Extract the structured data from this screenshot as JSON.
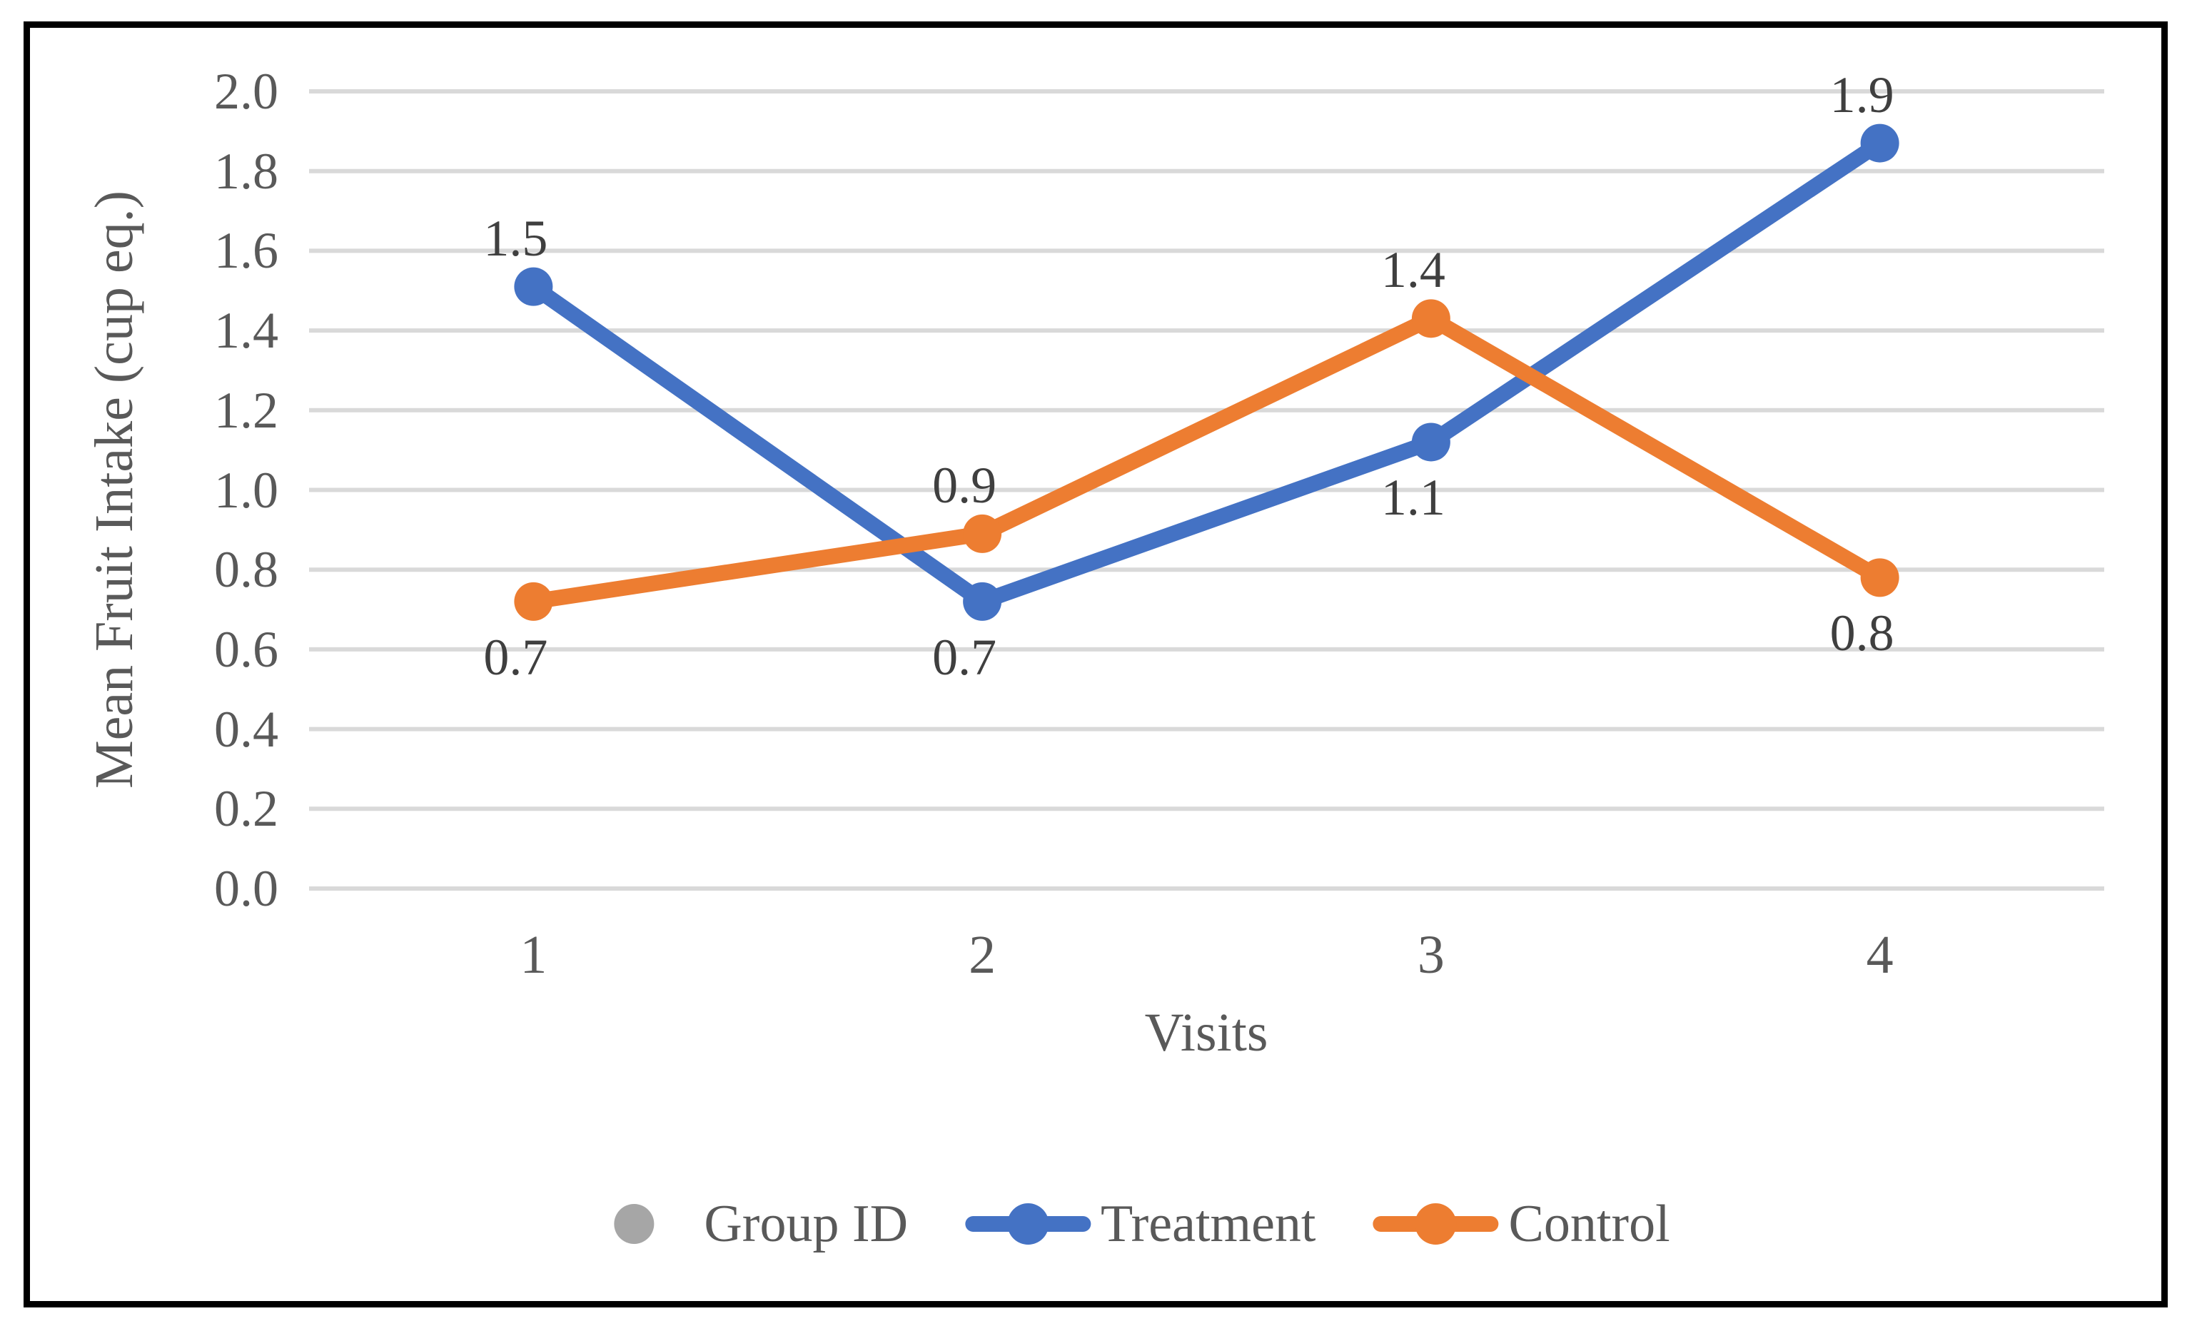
{
  "figure": {
    "background_color": "#FFFFFF",
    "border_color": "#000000"
  },
  "chart_data": {
    "type": "line",
    "title": "",
    "xlabel": "Visits",
    "ylabel": "Mean Fruit Intake (cup eq.)",
    "categories": [
      "1",
      "2",
      "3",
      "4"
    ],
    "ylim": [
      0.0,
      2.0
    ],
    "ytick_labels": [
      "0.0",
      "0.2",
      "0.4",
      "0.6",
      "0.8",
      "1.0",
      "1.2",
      "1.4",
      "1.6",
      "1.8",
      "2.0"
    ],
    "grid": "horizontal",
    "gridline_color": "#D9D9D9",
    "axis_text_color": "#595959",
    "data_label_color": "#3F3F3F",
    "series": [
      {
        "name": "Treatment",
        "color": "#4472C4",
        "values": [
          1.51,
          0.72,
          1.12,
          1.87
        ],
        "data_labels": [
          "1.5",
          "0.7",
          "1.1",
          "1.9"
        ],
        "label_positions": [
          "above",
          "below",
          "below",
          "above"
        ]
      },
      {
        "name": "Control",
        "color": "#ED7D31",
        "values": [
          0.72,
          0.89,
          1.43,
          0.78
        ],
        "data_labels": [
          "0.7",
          "0.9",
          "1.4",
          "0.8"
        ],
        "label_positions": [
          "below",
          "above",
          "above",
          "below"
        ]
      }
    ],
    "legend": {
      "position": "bottom",
      "items": [
        {
          "label": "Group ID",
          "color": "#A6A6A6",
          "marker": "dot"
        },
        {
          "label": "Treatment",
          "color": "#4472C4",
          "marker": "line-dot"
        },
        {
          "label": "Control",
          "color": "#ED7D31",
          "marker": "line-dot"
        }
      ]
    }
  }
}
